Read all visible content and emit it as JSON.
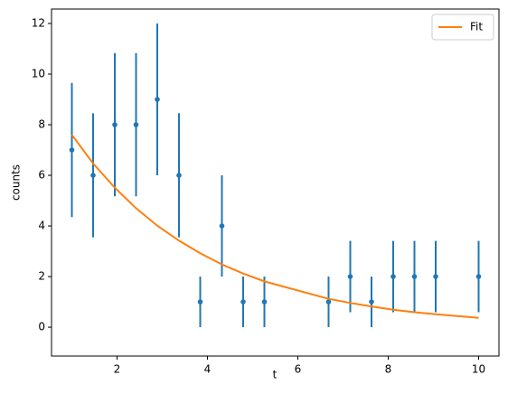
{
  "chart_data": {
    "type": "errorbar",
    "xlabel": "t",
    "ylabel": "counts",
    "x": [
      1.0,
      1.47,
      1.95,
      2.42,
      2.89,
      3.37,
      3.84,
      4.32,
      4.79,
      5.26,
      6.68,
      7.16,
      7.63,
      8.11,
      8.58,
      9.05,
      10.0
    ],
    "series": [
      {
        "color": "#1f77b4",
        "values": [
          7,
          6,
          8,
          8,
          9,
          6,
          1,
          4,
          1,
          1,
          1,
          2,
          1,
          2,
          2,
          2,
          2
        ],
        "errors": [
          2.65,
          2.45,
          2.83,
          2.83,
          3,
          2.45,
          1,
          2,
          1,
          1,
          1,
          1.41,
          1,
          1.41,
          1.41,
          1.41,
          1.41
        ]
      },
      {
        "name": "Fit",
        "color": "#ff7f0e",
        "values": [
          7.6,
          6.47,
          5.51,
          4.7,
          4.01,
          3.42,
          2.92,
          2.48,
          2.12,
          1.81,
          1.12,
          0.96,
          0.82,
          0.69,
          0.59,
          0.51,
          0.37
        ]
      }
    ],
    "xlim": [
      0.55,
      10.45
    ],
    "ylim": [
      -1.14,
      12.57
    ],
    "xticks": [
      2,
      4,
      6,
      8,
      10
    ],
    "yticks": [
      0,
      2,
      4,
      6,
      8,
      10,
      12
    ],
    "grid": false,
    "legend": "upper-right"
  }
}
